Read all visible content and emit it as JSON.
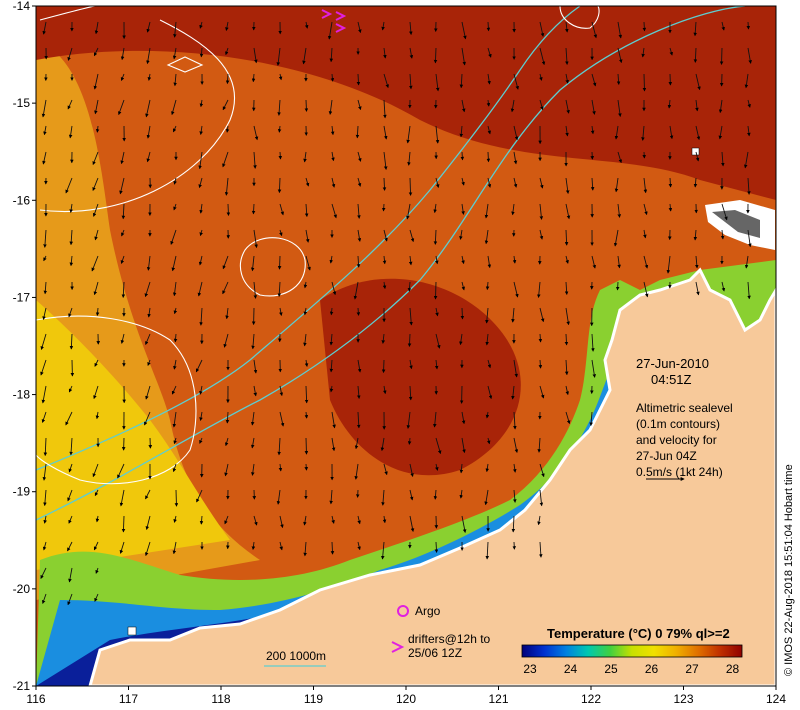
{
  "map": {
    "lon_range": [
      116,
      124
    ],
    "lat_range": [
      -21,
      -14
    ],
    "lon_ticks": [
      "116",
      "117",
      "118",
      "119",
      "120",
      "121",
      "122",
      "123",
      "124"
    ],
    "lat_ticks": [
      "-14",
      "-15",
      "-16",
      "-17",
      "-18",
      "-19",
      "-20",
      "-21"
    ],
    "land_color": "#f7c99a",
    "ocean_warm": "#b42d0a",
    "ocean_cool": "#f2b400",
    "contour_color": "#ffffff",
    "isobath_color": "#5ecdd0"
  },
  "annotations": {
    "date": "27-Jun-2010",
    "time": "04:51Z",
    "alt_lines": [
      "Altimetric sealevel",
      "(0.1m contours)",
      "and velocity for",
      "27-Jun 04Z",
      "0.5m/s (1kt 24h)"
    ],
    "argo_label": "Argo",
    "drifters_line1": "drifters@12h to",
    "drifters_line2": "25/06 12Z",
    "isobath_label": "200  1000m",
    "credit": "© IMOS 22-Aug-2018 15:51:04 Hobart time"
  },
  "colorbar": {
    "title": "Temperature (°C) 0 79% ql>=2",
    "ticks": [
      "23",
      "24",
      "25",
      "26",
      "27",
      "28"
    ],
    "colors": [
      "#00007a",
      "#0030d0",
      "#0080e0",
      "#00c8b0",
      "#40d040",
      "#c8e000",
      "#f0e000",
      "#f0b000",
      "#e07000",
      "#c03000",
      "#900000"
    ]
  },
  "icons": {
    "argo": "argo-float-circle-icon",
    "drifter": "drifter-chevron-icon"
  }
}
